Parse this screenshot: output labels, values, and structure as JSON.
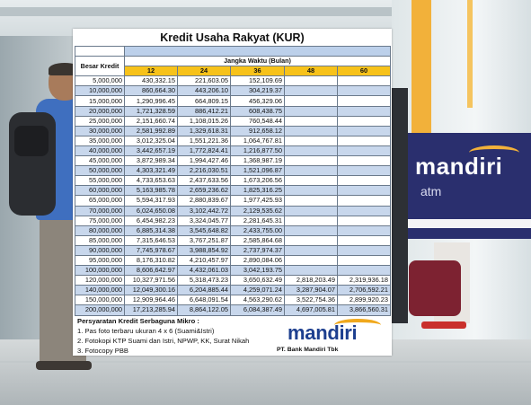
{
  "sheet": {
    "title": "Kredit Usaha Rakyat (KUR)",
    "amount_header": "Besar Kredit",
    "period_header": "Jangka Waktu (Bulan)",
    "terms": [
      "12",
      "24",
      "36",
      "48",
      "60"
    ],
    "rows": [
      {
        "amount": "5,000,000",
        "values": [
          "430,332.15",
          "221,603.05",
          "152,109.69",
          "",
          ""
        ]
      },
      {
        "amount": "10,000,000",
        "values": [
          "860,664.30",
          "443,206.10",
          "304,219.37",
          "",
          ""
        ]
      },
      {
        "amount": "15,000,000",
        "values": [
          "1,290,996.45",
          "664,809.15",
          "456,329.06",
          "",
          ""
        ]
      },
      {
        "amount": "20,000,000",
        "values": [
          "1,721,328.59",
          "886,412.21",
          "608,438.75",
          "",
          ""
        ]
      },
      {
        "amount": "25,000,000",
        "values": [
          "2,151,660.74",
          "1,108,015.26",
          "760,548.44",
          "",
          ""
        ]
      },
      {
        "amount": "30,000,000",
        "values": [
          "2,581,992.89",
          "1,329,618.31",
          "912,658.12",
          "",
          ""
        ]
      },
      {
        "amount": "35,000,000",
        "values": [
          "3,012,325.04",
          "1,551,221.36",
          "1,064,767.81",
          "",
          ""
        ]
      },
      {
        "amount": "40,000,000",
        "values": [
          "3,442,657.19",
          "1,772,824.41",
          "1,216,877.50",
          "",
          ""
        ]
      },
      {
        "amount": "45,000,000",
        "values": [
          "3,872,989.34",
          "1,994,427.46",
          "1,368,987.19",
          "",
          ""
        ]
      },
      {
        "amount": "50,000,000",
        "values": [
          "4,303,321.49",
          "2,216,030.51",
          "1,521,096.87",
          "",
          ""
        ]
      },
      {
        "amount": "55,000,000",
        "values": [
          "4,733,653.63",
          "2,437,633.56",
          "1,673,206.56",
          "",
          ""
        ]
      },
      {
        "amount": "60,000,000",
        "values": [
          "5,163,985.78",
          "2,659,236.62",
          "1,825,316.25",
          "",
          ""
        ]
      },
      {
        "amount": "65,000,000",
        "values": [
          "5,594,317.93",
          "2,880,839.67",
          "1,977,425.93",
          "",
          ""
        ]
      },
      {
        "amount": "70,000,000",
        "values": [
          "6,024,650.08",
          "3,102,442.72",
          "2,129,535.62",
          "",
          ""
        ]
      },
      {
        "amount": "75,000,000",
        "values": [
          "6,454,982.23",
          "3,324,045.77",
          "2,281,645.31",
          "",
          ""
        ]
      },
      {
        "amount": "80,000,000",
        "values": [
          "6,885,314.38",
          "3,545,648.82",
          "2,433,755.00",
          "",
          ""
        ]
      },
      {
        "amount": "85,000,000",
        "values": [
          "7,315,646.53",
          "3,767,251.87",
          "2,585,864.68",
          "",
          ""
        ]
      },
      {
        "amount": "90,000,000",
        "values": [
          "7,745,978.67",
          "3,988,854.92",
          "2,737,974.37",
          "",
          ""
        ]
      },
      {
        "amount": "95,000,000",
        "values": [
          "8,176,310.82",
          "4,210,457.97",
          "2,890,084.06",
          "",
          ""
        ]
      },
      {
        "amount": "100,000,000",
        "values": [
          "8,606,642.97",
          "4,432,061.03",
          "3,042,193.75",
          "",
          ""
        ]
      },
      {
        "amount": "120,000,000",
        "values": [
          "10,327,971.56",
          "5,318,473.23",
          "3,650,632.49",
          "2,818,203.49",
          "2,319,936.18"
        ]
      },
      {
        "amount": "140,000,000",
        "values": [
          "12,049,300.16",
          "6,204,885.44",
          "4,259,071.24",
          "3,287,904.07",
          "2,706,592.21"
        ]
      },
      {
        "amount": "150,000,000",
        "values": [
          "12,909,964.46",
          "6,648,091.54",
          "4,563,290.62",
          "3,522,754.36",
          "2,899,920.23"
        ]
      },
      {
        "amount": "200,000,000",
        "values": [
          "17,213,285.94",
          "8,864,122.05",
          "6,084,387.49",
          "4,697,005.81",
          "3,866,560.31"
        ]
      }
    ],
    "requirements_title": "Persyaratan Kredit Serbaguna Mikro :",
    "requirements": [
      "1. Pas foto terbaru ukuran 4 x 6 (Suami&Istri)",
      "2. Fotokopi KTP Suami dan Istri, NPWP, KK, Surat Nikah",
      "3. Fotocopy PBB"
    ],
    "logo_text": "mandiri",
    "company": "PT. Bank Mandiri Tbk"
  },
  "background": {
    "atm_brand": "mandiri",
    "atm_label": "atm",
    "brand_gold": "#f2b13a",
    "brand_navy": "#2a2f6e",
    "row_highlight": "#c8d7ec",
    "term_header": "#f7c21a"
  }
}
